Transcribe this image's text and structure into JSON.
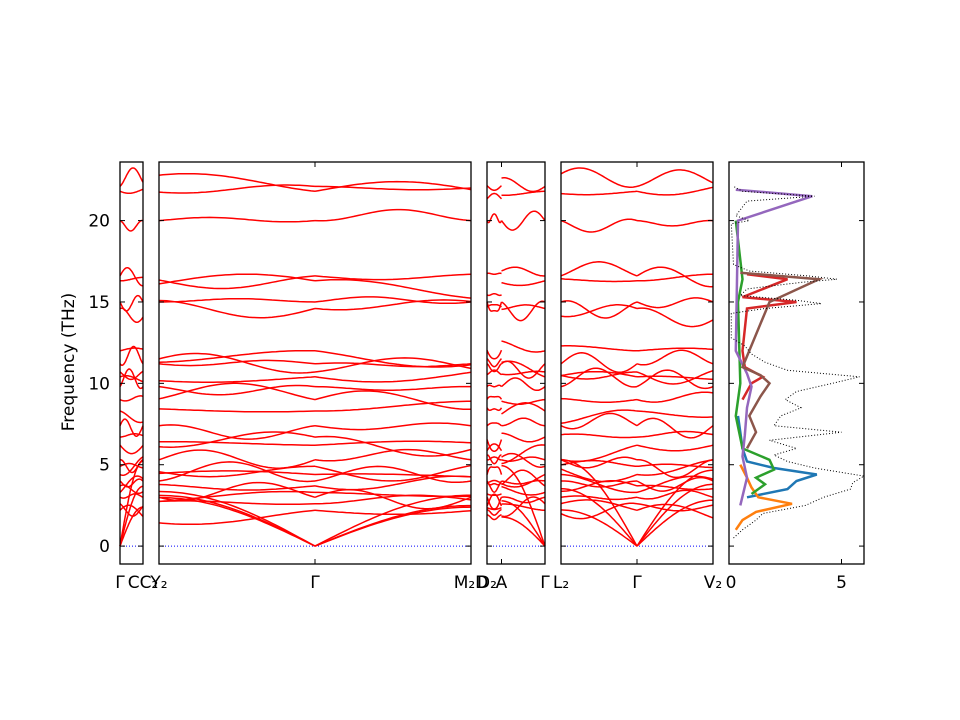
{
  "chart_data": {
    "type": "line",
    "ylabel": "Frequency (THz)",
    "ylim": [
      -1.1,
      23.6
    ],
    "y_ticks": [
      "0",
      "5",
      "10",
      "15",
      "20"
    ],
    "y_tick_values": [
      0,
      5,
      10,
      15,
      20
    ],
    "band_color": "#ff0000",
    "zero_line_color": "#0000ff",
    "panels": [
      {
        "segments": [
          {
            "t_range": [
              0,
              1
            ],
            "start": "Γ",
            "end": "C"
          }
        ],
        "bottom_labels": [
          {
            "t": 0,
            "text": "Γ"
          },
          {
            "t": 1,
            "text": "CC₂"
          }
        ]
      },
      {
        "segments": [
          {
            "t_range": [
              0,
              0.5
            ],
            "start": "Y₂",
            "end": "Γ"
          },
          {
            "t_range": [
              0.5,
              1
            ],
            "start": "Γ",
            "end": "M₂"
          }
        ],
        "bottom_labels": [
          {
            "t": 0,
            "text": "Y₂"
          },
          {
            "t": 0.5,
            "text": "Γ"
          },
          {
            "t": 1,
            "text": "M₂D"
          }
        ]
      },
      {
        "segments": [
          {
            "t_range": [
              0,
              0.25
            ],
            "start": "D₂",
            "end": "A"
          },
          {
            "t_range": [
              0.25,
              1
            ],
            "start": "A",
            "end": "Γ"
          }
        ],
        "bottom_labels": [
          {
            "t": 0,
            "text": "D₂"
          },
          {
            "t": 0.25,
            "text": "A"
          },
          {
            "t": 1,
            "text": "Γ"
          }
        ]
      },
      {
        "segments": [
          {
            "t_range": [
              0,
              0.5
            ],
            "start": "L₂",
            "end": "Γ"
          },
          {
            "t_range": [
              0.5,
              1
            ],
            "start": "Γ",
            "end": "V₂"
          }
        ],
        "bottom_labels": [
          {
            "t": 0,
            "text": "L₂"
          },
          {
            "t": 0.5,
            "text": "Γ"
          },
          {
            "t": 1,
            "text": "V₂"
          }
        ]
      }
    ],
    "bands_at_gamma_thz": [
      0,
      0,
      0,
      2.2,
      2.6,
      3.0,
      3.3,
      3.7,
      4.0,
      4.4,
      4.9,
      5.3,
      6.2,
      6.7,
      7.4,
      8.3,
      9.0,
      9.8,
      10.4,
      10.7,
      11.2,
      12.0,
      14.6,
      15.0,
      16.3,
      16.6,
      20.0,
      21.8,
      22.1
    ],
    "dos": {
      "xlim": [
        0,
        6
      ],
      "x_ticks": [
        "0",
        "5"
      ],
      "x_tick_values": [
        0,
        5
      ],
      "total_style": "black dotted",
      "total": [
        {
          "f": 0.5,
          "d": 0.2
        },
        {
          "f": 1.0,
          "d": 0.6
        },
        {
          "f": 1.6,
          "d": 1.2
        },
        {
          "f": 2.0,
          "d": 1.5
        },
        {
          "f": 2.5,
          "d": 3.4
        },
        {
          "f": 3.0,
          "d": 4.2
        },
        {
          "f": 3.5,
          "d": 5.4
        },
        {
          "f": 3.9,
          "d": 5.5
        },
        {
          "f": 4.3,
          "d": 6.0
        },
        {
          "f": 4.8,
          "d": 3.8
        },
        {
          "f": 5.2,
          "d": 2.6
        },
        {
          "f": 5.6,
          "d": 2.0
        },
        {
          "f": 6.0,
          "d": 3.0
        },
        {
          "f": 6.5,
          "d": 1.8
        },
        {
          "f": 7.0,
          "d": 5.0
        },
        {
          "f": 7.4,
          "d": 2.0
        },
        {
          "f": 8.0,
          "d": 2.3
        },
        {
          "f": 8.5,
          "d": 3.2
        },
        {
          "f": 9.0,
          "d": 2.5
        },
        {
          "f": 9.5,
          "d": 3.0
        },
        {
          "f": 10.0,
          "d": 4.6
        },
        {
          "f": 10.4,
          "d": 5.8
        },
        {
          "f": 10.8,
          "d": 2.6
        },
        {
          "f": 11.3,
          "d": 1.6
        },
        {
          "f": 11.8,
          "d": 1.0
        },
        {
          "f": 12.3,
          "d": 0.7
        },
        {
          "f": 12.8,
          "d": 0.1
        },
        {
          "f": 14.3,
          "d": 0.1
        },
        {
          "f": 14.6,
          "d": 1.6
        },
        {
          "f": 14.9,
          "d": 4.1
        },
        {
          "f": 15.1,
          "d": 3.0
        },
        {
          "f": 15.4,
          "d": 0.5
        },
        {
          "f": 15.8,
          "d": 0.8
        },
        {
          "f": 16.2,
          "d": 3.2
        },
        {
          "f": 16.4,
          "d": 4.8
        },
        {
          "f": 16.6,
          "d": 3.5
        },
        {
          "f": 16.9,
          "d": 0.9
        },
        {
          "f": 17.3,
          "d": 0.2
        },
        {
          "f": 19.8,
          "d": 0.1
        },
        {
          "f": 20.0,
          "d": 0.9
        },
        {
          "f": 20.3,
          "d": 0.3
        },
        {
          "f": 21.2,
          "d": 0.8
        },
        {
          "f": 21.5,
          "d": 3.8
        },
        {
          "f": 21.8,
          "d": 0.6
        },
        {
          "f": 22.1,
          "d": 0.2
        }
      ],
      "partials": [
        {
          "color": "#1f77b4",
          "points": [
            {
              "f": 3.0,
              "d": 0.8
            },
            {
              "f": 3.5,
              "d": 2.6
            },
            {
              "f": 4.0,
              "d": 3.0
            },
            {
              "f": 4.4,
              "d": 3.9
            },
            {
              "f": 4.8,
              "d": 2.0
            },
            {
              "f": 5.2,
              "d": 0.8
            },
            {
              "f": 6.0,
              "d": 0.6
            },
            {
              "f": 7.0,
              "d": 0.5
            },
            {
              "f": 8.0,
              "d": 0.4
            }
          ]
        },
        {
          "color": "#ff7f0e",
          "points": [
            {
              "f": 1.0,
              "d": 0.3
            },
            {
              "f": 1.6,
              "d": 0.6
            },
            {
              "f": 2.1,
              "d": 1.2
            },
            {
              "f": 2.6,
              "d": 2.8
            },
            {
              "f": 3.0,
              "d": 1.3
            },
            {
              "f": 3.6,
              "d": 1.0
            },
            {
              "f": 4.2,
              "d": 0.8
            },
            {
              "f": 5.0,
              "d": 0.5
            }
          ]
        },
        {
          "color": "#2ca02c",
          "points": [
            {
              "f": 3.2,
              "d": 1.0
            },
            {
              "f": 3.8,
              "d": 1.6
            },
            {
              "f": 4.2,
              "d": 1.2
            },
            {
              "f": 4.7,
              "d": 2.0
            },
            {
              "f": 5.3,
              "d": 1.8
            },
            {
              "f": 6.0,
              "d": 0.6
            },
            {
              "f": 8.0,
              "d": 0.3
            },
            {
              "f": 10.0,
              "d": 0.5
            },
            {
              "f": 15.0,
              "d": 0.4
            },
            {
              "f": 16.4,
              "d": 0.6
            },
            {
              "f": 20.0,
              "d": 0.3
            }
          ]
        },
        {
          "color": "#d62728",
          "points": [
            {
              "f": 9.0,
              "d": 0.6
            },
            {
              "f": 10.0,
              "d": 1.0
            },
            {
              "f": 10.4,
              "d": 1.5
            },
            {
              "f": 11.0,
              "d": 0.7
            },
            {
              "f": 12.0,
              "d": 0.6
            },
            {
              "f": 14.6,
              "d": 0.8
            },
            {
              "f": 15.0,
              "d": 3.0
            },
            {
              "f": 15.3,
              "d": 0.6
            },
            {
              "f": 16.4,
              "d": 2.6
            },
            {
              "f": 16.7,
              "d": 0.8
            }
          ]
        },
        {
          "color": "#9467bd",
          "points": [
            {
              "f": 2.5,
              "d": 0.5
            },
            {
              "f": 4.2,
              "d": 0.8
            },
            {
              "f": 5.5,
              "d": 0.6
            },
            {
              "f": 6.8,
              "d": 0.7
            },
            {
              "f": 8.5,
              "d": 0.8
            },
            {
              "f": 9.8,
              "d": 1.0
            },
            {
              "f": 10.6,
              "d": 0.8
            },
            {
              "f": 12.0,
              "d": 0.3
            },
            {
              "f": 20.0,
              "d": 0.4
            },
            {
              "f": 21.5,
              "d": 3.7
            },
            {
              "f": 21.9,
              "d": 0.3
            }
          ]
        },
        {
          "color": "#8c564b",
          "points": [
            {
              "f": 6.0,
              "d": 0.8
            },
            {
              "f": 7.0,
              "d": 1.2
            },
            {
              "f": 8.0,
              "d": 0.9
            },
            {
              "f": 9.2,
              "d": 1.4
            },
            {
              "f": 10.0,
              "d": 1.8
            },
            {
              "f": 10.5,
              "d": 1.4
            },
            {
              "f": 11.0,
              "d": 0.6
            },
            {
              "f": 15.0,
              "d": 1.8
            },
            {
              "f": 16.4,
              "d": 4.0
            },
            {
              "f": 16.8,
              "d": 0.5
            }
          ]
        }
      ]
    }
  }
}
